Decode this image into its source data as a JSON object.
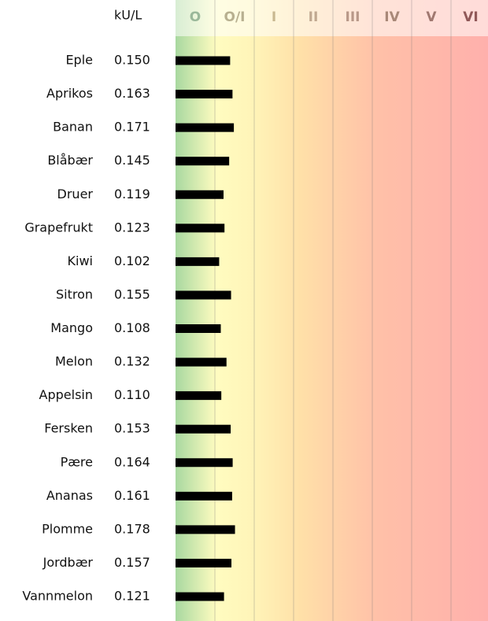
{
  "chart_data": {
    "type": "bar",
    "orientation": "horizontal",
    "unit_label": "kU/L",
    "classes": [
      "O",
      "O/I",
      "I",
      "II",
      "III",
      "IV",
      "V",
      "VI"
    ],
    "categories": [
      "Eple",
      "Aprikos",
      "Banan",
      "Blåbær",
      "Druer",
      "Grapefrukt",
      "Kiwi",
      "Sitron",
      "Mango",
      "Melon",
      "Appelsin",
      "Fersken",
      "Pære",
      "Ananas",
      "Plomme",
      "Jordbær",
      "Vannmelon"
    ],
    "values": [
      0.15,
      0.163,
      0.171,
      0.145,
      0.119,
      0.123,
      0.102,
      0.155,
      0.108,
      0.132,
      0.11,
      0.153,
      0.164,
      0.161,
      0.178,
      0.157,
      0.121
    ],
    "value_labels": [
      "0.150",
      "0.163",
      "0.171",
      "0.145",
      "0.119",
      "0.123",
      "0.102",
      "0.155",
      "0.108",
      "0.132",
      "0.110",
      "0.153",
      "0.164",
      "0.161",
      "0.178",
      "0.157",
      "0.121"
    ],
    "color": "#000000",
    "log_scale": true,
    "xlim": [
      0.022,
      0.35
    ]
  }
}
